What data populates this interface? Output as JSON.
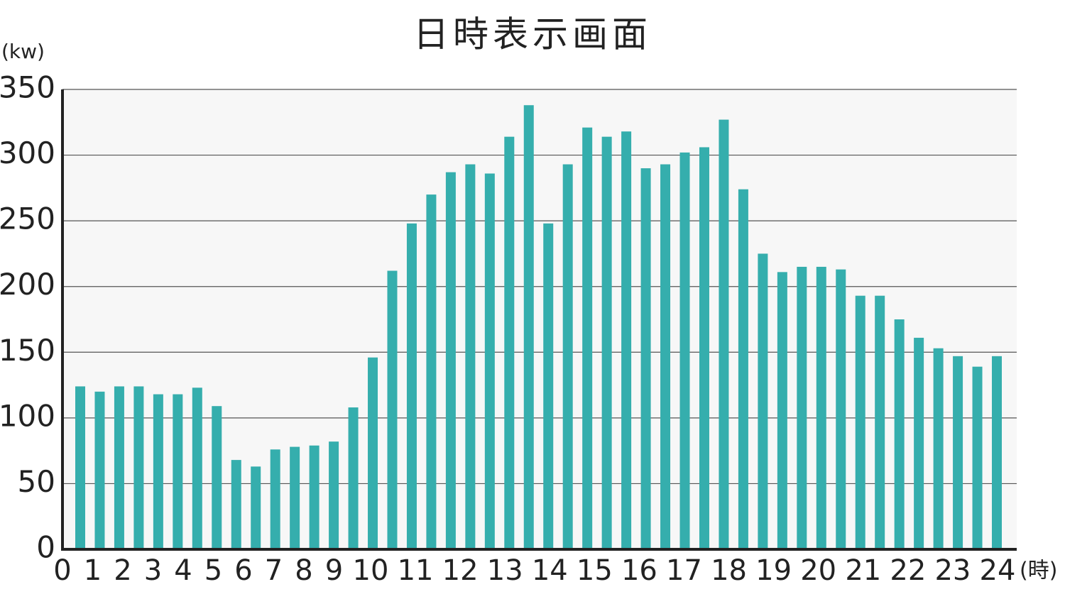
{
  "chart_data": {
    "type": "bar",
    "title": "日時表示画面",
    "y_label": "(kw)",
    "x_label": "(時)",
    "categories": [
      null,
      null,
      null,
      null,
      null,
      null,
      null,
      null,
      null,
      null,
      null,
      null,
      null,
      null,
      null,
      null,
      null,
      null,
      null,
      null,
      null,
      null,
      null,
      null,
      null,
      null,
      null,
      null,
      null,
      null,
      null,
      null,
      null,
      null,
      null,
      null,
      null,
      null,
      null,
      null,
      null,
      null,
      null,
      null,
      null,
      null,
      null,
      null
    ],
    "values": [
      124,
      120,
      124,
      124,
      118,
      118,
      123,
      109,
      68,
      63,
      76,
      78,
      79,
      82,
      108,
      146,
      212,
      248,
      270,
      287,
      293,
      286,
      314,
      338,
      248,
      293,
      321,
      314,
      318,
      290,
      293,
      302,
      306,
      327,
      274,
      225,
      211,
      215,
      215,
      213,
      193,
      193,
      175,
      161,
      153,
      147,
      139,
      147
    ],
    "color": "#35aead",
    "ylim": [
      0,
      350
    ],
    "yticks": [
      0,
      50,
      100,
      150,
      200,
      250,
      300,
      350
    ],
    "xticks": [
      0,
      1,
      2,
      3,
      4,
      5,
      6,
      7,
      8,
      9,
      10,
      11,
      12,
      13,
      14,
      15,
      16,
      17,
      18,
      19,
      20,
      21,
      22,
      23,
      24
    ],
    "grid": true
  }
}
